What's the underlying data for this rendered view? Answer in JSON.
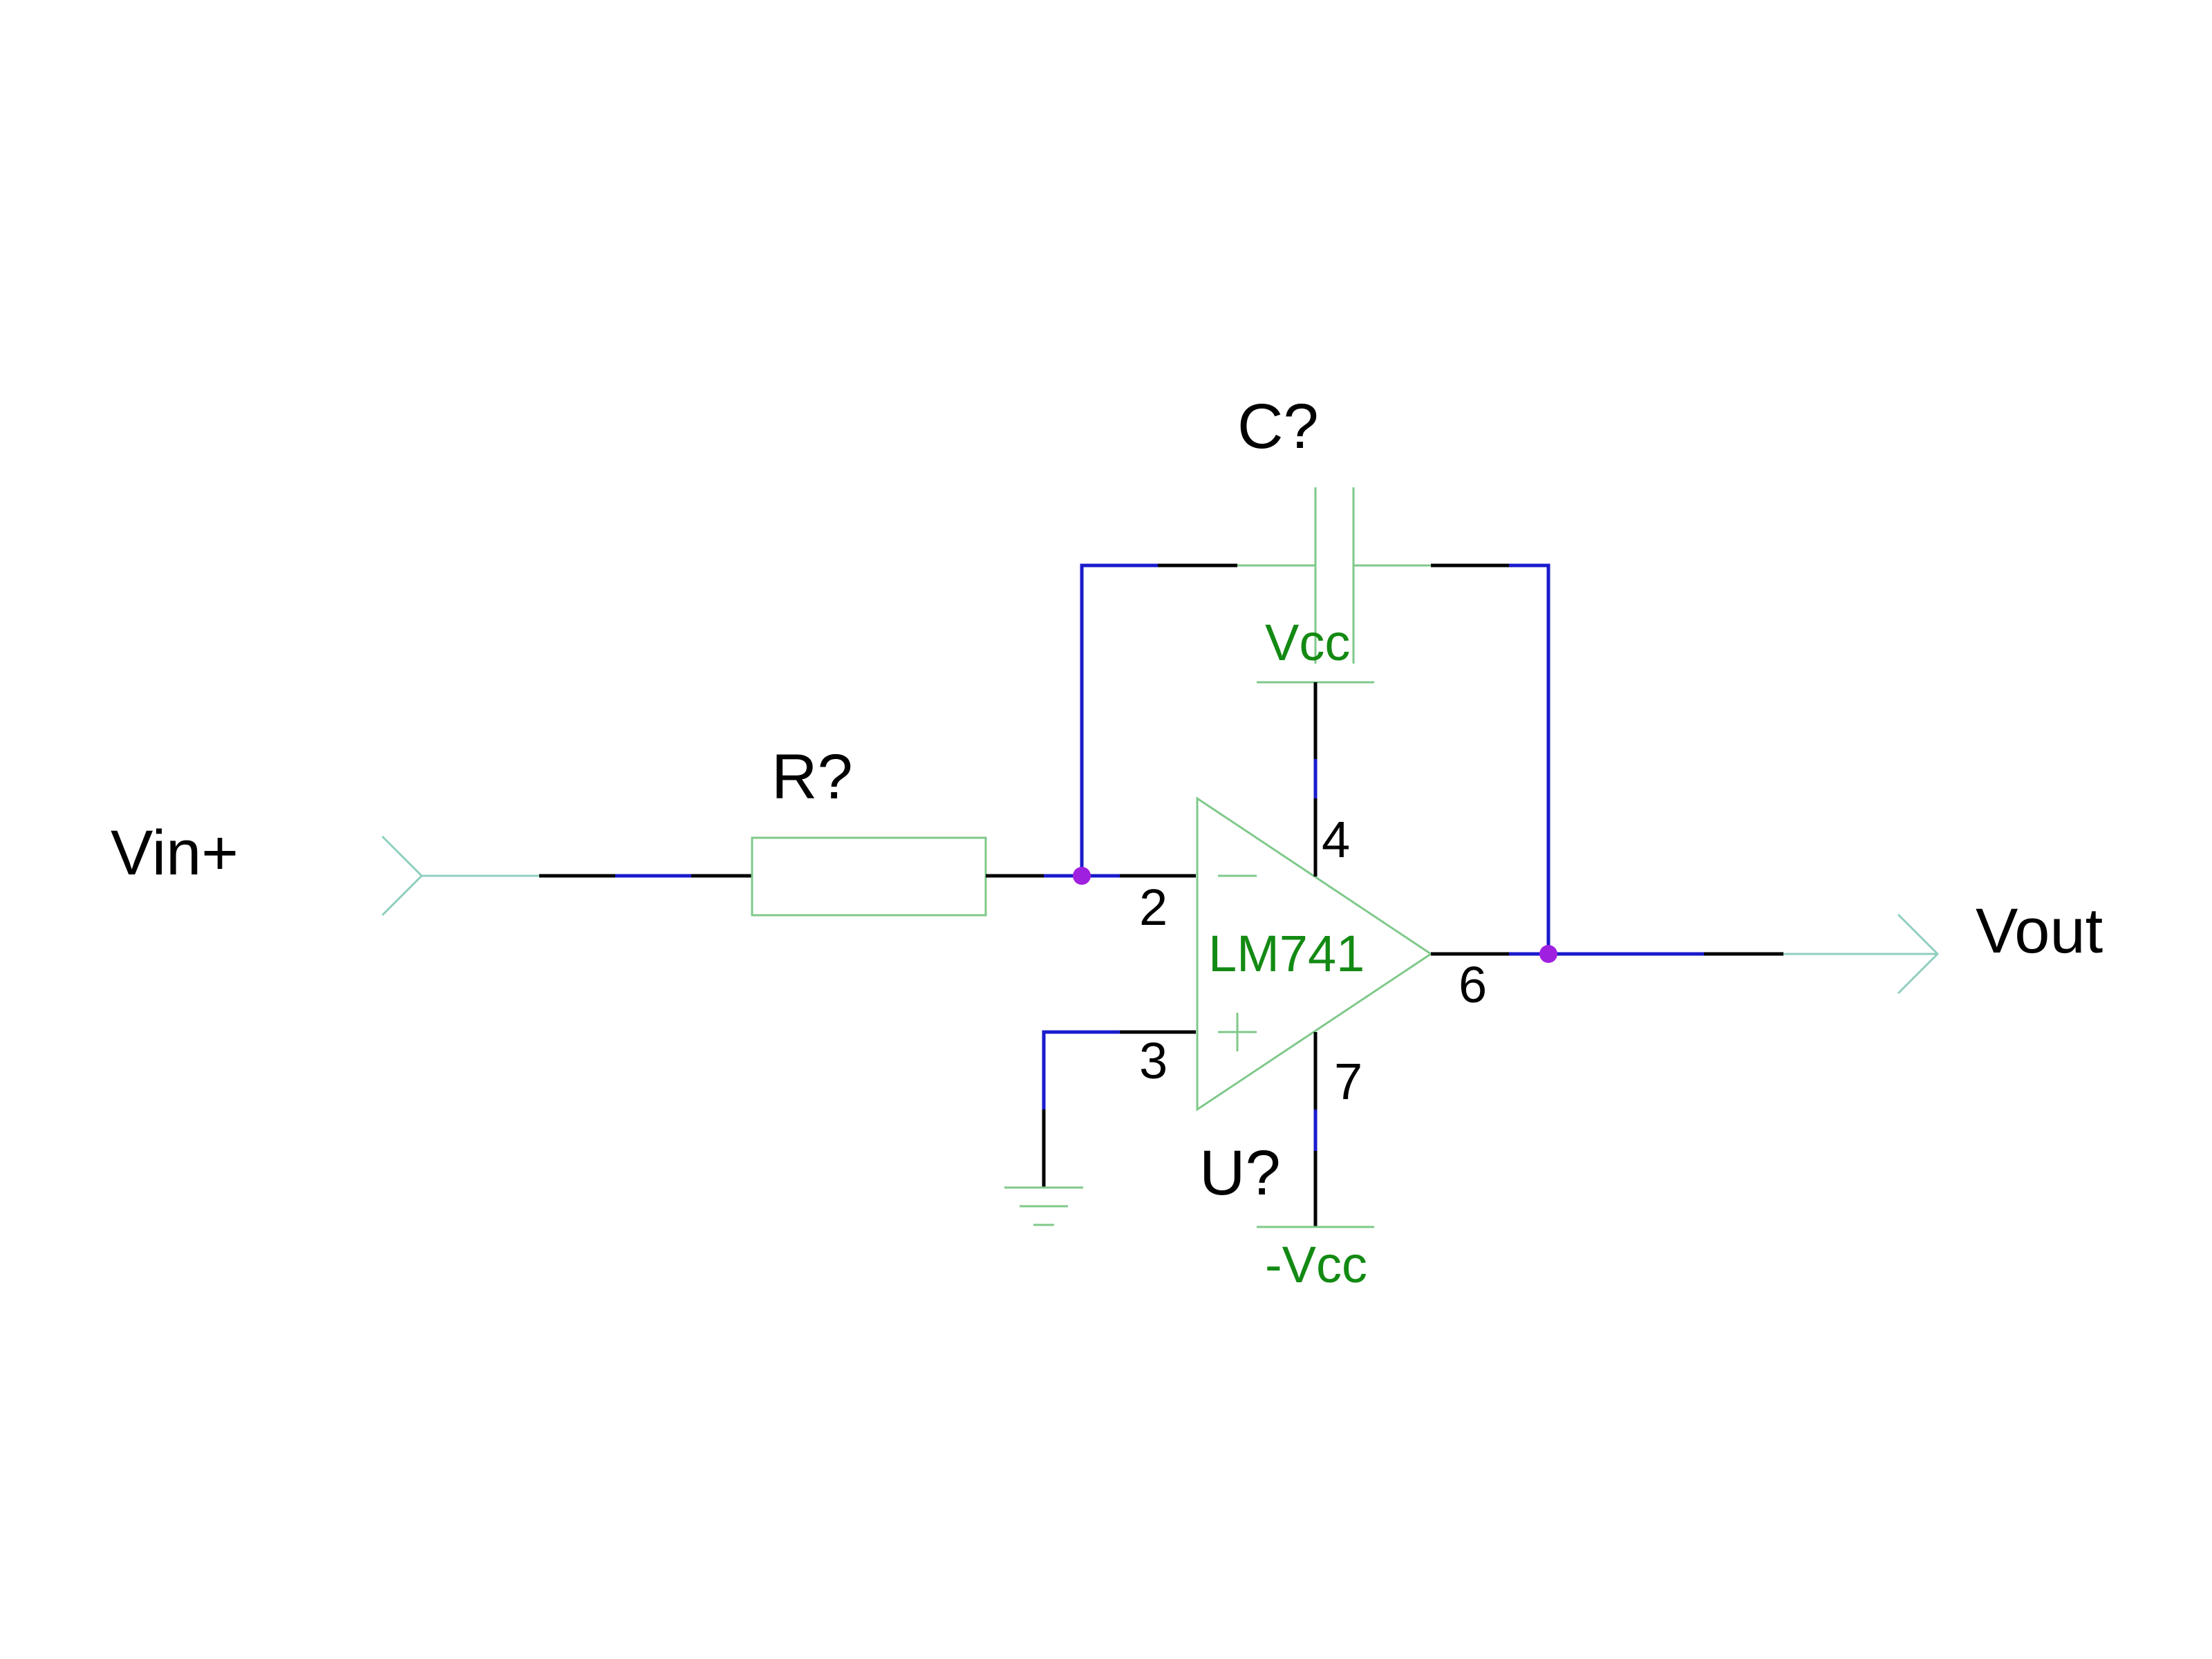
{
  "labels": {
    "vin": "Vin+",
    "vout": "Vout",
    "resistor_ref": "R?",
    "capacitor_ref": "C?",
    "opamp_ref": "U?",
    "opamp_part": "LM741",
    "vcc": "Vcc",
    "neg_vcc": "-Vcc",
    "pin_inverting": "2",
    "pin_noninverting": "3",
    "pin_vpos": "4",
    "pin_output": "6",
    "pin_vneg": "7"
  },
  "colors": {
    "wire": "#1a1acc",
    "lead": "#000000",
    "component": "#7fc98a",
    "port": "#8fcfc0",
    "junction": "#a020e0",
    "part_text": "#138a13",
    "text": "#000000"
  }
}
